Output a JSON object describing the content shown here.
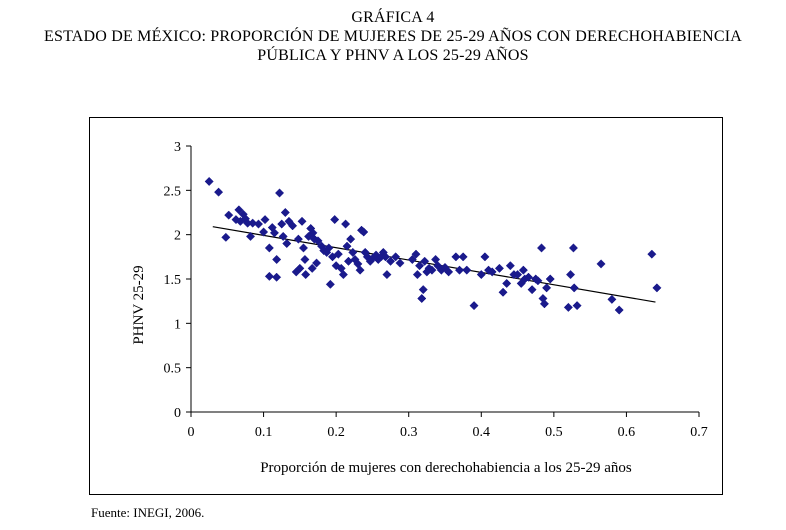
{
  "figure": {
    "label": "GRÁFICA 4",
    "title_line1": "ESTADO DE MÉXICO: PROPORCIÓN DE MUJERES DE 25-29 AÑOS CON DERECHOHABIENCIA",
    "title_line2": "PÚBLICA Y PHNV A LOS 25-29 AÑOS",
    "source": "Fuente: INEGI, 2006."
  },
  "colors": {
    "marker": "#1a1a8c",
    "trendline": "#000000",
    "axis": "#000000"
  },
  "chart_data": {
    "type": "scatter",
    "title": "ESTADO DE MÉXICO: PROPORCIÓN DE MUJERES DE 25-29 AÑOS CON DERECHOHABIENCIA PÚBLICA Y PHNV A LOS 25-29 AÑOS",
    "xlabel": "Proporción de mujeres con derechohabiencia a los 25-29 años",
    "ylabel": "PHNV 25-29",
    "xlim": [
      0,
      0.7
    ],
    "ylim": [
      0,
      3
    ],
    "xticks": [
      0,
      0.1,
      0.2,
      0.3,
      0.4,
      0.5,
      0.6,
      0.7
    ],
    "xtick_labels": [
      "0",
      "0.1",
      "0.2",
      "0.3",
      "0.4",
      "0.5",
      "0.6",
      "0.7"
    ],
    "yticks": [
      0,
      0.5,
      1,
      1.5,
      2,
      2.5,
      3
    ],
    "ytick_labels": [
      "0",
      "0.5",
      "1",
      "1.5",
      "2",
      "2.5",
      "3"
    ],
    "grid": false,
    "legend": "none",
    "marker": "diamond",
    "trendline": {
      "x": [
        0.03,
        0.64
      ],
      "y": [
        2.09,
        1.24
      ]
    },
    "points": [
      [
        0.025,
        2.6
      ],
      [
        0.038,
        2.48
      ],
      [
        0.048,
        1.97
      ],
      [
        0.052,
        2.22
      ],
      [
        0.062,
        2.17
      ],
      [
        0.066,
        2.28
      ],
      [
        0.068,
        2.15
      ],
      [
        0.072,
        2.23
      ],
      [
        0.075,
        2.18
      ],
      [
        0.078,
        2.13
      ],
      [
        0.082,
        1.98
      ],
      [
        0.085,
        2.13
      ],
      [
        0.093,
        2.12
      ],
      [
        0.1,
        2.03
      ],
      [
        0.102,
        2.17
      ],
      [
        0.108,
        1.85
      ],
      [
        0.108,
        1.53
      ],
      [
        0.112,
        2.08
      ],
      [
        0.115,
        2.02
      ],
      [
        0.118,
        1.52
      ],
      [
        0.118,
        1.72
      ],
      [
        0.122,
        2.47
      ],
      [
        0.125,
        2.12
      ],
      [
        0.127,
        1.98
      ],
      [
        0.13,
        2.25
      ],
      [
        0.132,
        1.9
      ],
      [
        0.135,
        2.15
      ],
      [
        0.14,
        2.1
      ],
      [
        0.145,
        1.58
      ],
      [
        0.148,
        1.95
      ],
      [
        0.15,
        1.62
      ],
      [
        0.153,
        2.15
      ],
      [
        0.155,
        1.85
      ],
      [
        0.157,
        1.72
      ],
      [
        0.158,
        1.55
      ],
      [
        0.162,
        1.98
      ],
      [
        0.165,
        2.07
      ],
      [
        0.167,
        1.62
      ],
      [
        0.168,
        2.02
      ],
      [
        0.17,
        1.95
      ],
      [
        0.173,
        1.68
      ],
      [
        0.175,
        1.93
      ],
      [
        0.18,
        1.87
      ],
      [
        0.183,
        1.82
      ],
      [
        0.187,
        1.8
      ],
      [
        0.19,
        1.85
      ],
      [
        0.192,
        1.44
      ],
      [
        0.195,
        1.75
      ],
      [
        0.198,
        2.17
      ],
      [
        0.2,
        1.65
      ],
      [
        0.203,
        1.78
      ],
      [
        0.207,
        1.62
      ],
      [
        0.21,
        1.55
      ],
      [
        0.213,
        2.12
      ],
      [
        0.215,
        1.87
      ],
      [
        0.217,
        1.7
      ],
      [
        0.22,
        1.95
      ],
      [
        0.223,
        1.8
      ],
      [
        0.226,
        1.72
      ],
      [
        0.23,
        1.67
      ],
      [
        0.233,
        1.6
      ],
      [
        0.235,
        2.05
      ],
      [
        0.238,
        2.03
      ],
      [
        0.24,
        1.8
      ],
      [
        0.243,
        1.75
      ],
      [
        0.247,
        1.7
      ],
      [
        0.25,
        1.73
      ],
      [
        0.255,
        1.77
      ],
      [
        0.258,
        1.72
      ],
      [
        0.262,
        1.75
      ],
      [
        0.265,
        1.8
      ],
      [
        0.268,
        1.75
      ],
      [
        0.27,
        1.55
      ],
      [
        0.275,
        1.7
      ],
      [
        0.282,
        1.75
      ],
      [
        0.288,
        1.68
      ],
      [
        0.305,
        1.72
      ],
      [
        0.31,
        1.78
      ],
      [
        0.312,
        1.55
      ],
      [
        0.315,
        1.65
      ],
      [
        0.318,
        1.28
      ],
      [
        0.32,
        1.38
      ],
      [
        0.322,
        1.7
      ],
      [
        0.325,
        1.58
      ],
      [
        0.328,
        1.62
      ],
      [
        0.332,
        1.6
      ],
      [
        0.337,
        1.72
      ],
      [
        0.34,
        1.65
      ],
      [
        0.345,
        1.6
      ],
      [
        0.35,
        1.63
      ],
      [
        0.355,
        1.58
      ],
      [
        0.365,
        1.75
      ],
      [
        0.37,
        1.6
      ],
      [
        0.375,
        1.75
      ],
      [
        0.38,
        1.6
      ],
      [
        0.39,
        1.2
      ],
      [
        0.4,
        1.55
      ],
      [
        0.405,
        1.75
      ],
      [
        0.41,
        1.6
      ],
      [
        0.415,
        1.58
      ],
      [
        0.425,
        1.62
      ],
      [
        0.43,
        1.35
      ],
      [
        0.435,
        1.45
      ],
      [
        0.44,
        1.65
      ],
      [
        0.445,
        1.55
      ],
      [
        0.45,
        1.55
      ],
      [
        0.455,
        1.45
      ],
      [
        0.458,
        1.6
      ],
      [
        0.46,
        1.5
      ],
      [
        0.465,
        1.52
      ],
      [
        0.47,
        1.38
      ],
      [
        0.475,
        1.5
      ],
      [
        0.478,
        1.48
      ],
      [
        0.483,
        1.85
      ],
      [
        0.485,
        1.28
      ],
      [
        0.487,
        1.22
      ],
      [
        0.49,
        1.4
      ],
      [
        0.495,
        1.5
      ],
      [
        0.52,
        1.18
      ],
      [
        0.523,
        1.55
      ],
      [
        0.527,
        1.85
      ],
      [
        0.528,
        1.4
      ],
      [
        0.532,
        1.2
      ],
      [
        0.565,
        1.67
      ],
      [
        0.58,
        1.27
      ],
      [
        0.59,
        1.15
      ],
      [
        0.635,
        1.78
      ],
      [
        0.642,
        1.4
      ]
    ]
  }
}
